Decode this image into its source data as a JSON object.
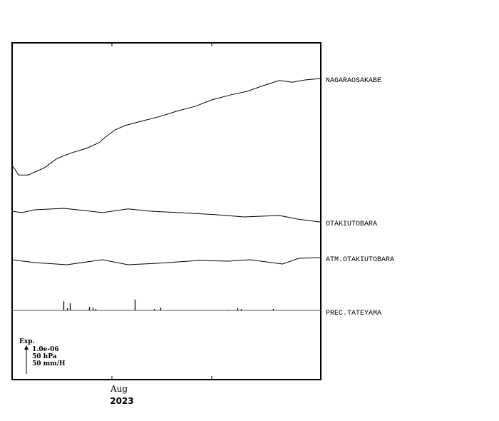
{
  "chart_data": {
    "type": "line",
    "xlim": [
      "2023-07-01",
      "2023-10-05"
    ],
    "x_ticks": [
      {
        "date": "2023-07-01",
        "label": ""
      },
      {
        "date": "2023-08-01",
        "label": "Aug"
      },
      {
        "date": "2023-09-01",
        "label": ""
      }
    ],
    "year_label": "2023",
    "grid": false,
    "scale_bar": {
      "title": "Exp.",
      "lines": [
        "1.0e-06",
        "50 hPa",
        "50 mm/H"
      ]
    },
    "series": [
      {
        "name": "NAGARAOSAKABE",
        "unit": "strain x 1.0e-06",
        "points": [
          [
            "2023-07-01",
            0
          ],
          [
            "2023-07-02",
            -0.15
          ],
          [
            "2023-07-03",
            -0.33
          ],
          [
            "2023-07-06",
            -0.33
          ],
          [
            "2023-07-11",
            -0.08
          ],
          [
            "2023-07-15",
            0.25
          ],
          [
            "2023-07-19",
            0.43
          ],
          [
            "2023-07-24",
            0.6
          ],
          [
            "2023-07-28",
            0.8
          ],
          [
            "2023-07-30",
            1.0
          ],
          [
            "2023-08-02",
            1.25
          ],
          [
            "2023-08-05",
            1.4
          ],
          [
            "2023-08-10",
            1.55
          ],
          [
            "2023-08-16",
            1.72
          ],
          [
            "2023-08-21",
            1.9
          ],
          [
            "2023-08-27",
            2.08
          ],
          [
            "2023-09-01",
            2.3
          ],
          [
            "2023-09-07",
            2.48
          ],
          [
            "2023-09-12",
            2.6
          ],
          [
            "2023-09-17",
            2.8
          ],
          [
            "2023-09-22",
            2.98
          ],
          [
            "2023-09-26",
            2.92
          ],
          [
            "2023-09-30",
            3.0
          ],
          [
            "2023-10-05",
            3.05
          ]
        ]
      },
      {
        "name": "OTAKIUTOBARA",
        "unit": "strain x 1.0e-06",
        "points": [
          [
            "2023-07-01",
            0
          ],
          [
            "2023-07-04",
            -0.05
          ],
          [
            "2023-07-08",
            0.05
          ],
          [
            "2023-07-17",
            0.1
          ],
          [
            "2023-07-24",
            0.02
          ],
          [
            "2023-07-29",
            -0.05
          ],
          [
            "2023-08-06",
            0.08
          ],
          [
            "2023-08-13",
            0
          ],
          [
            "2023-08-22",
            -0.05
          ],
          [
            "2023-09-02",
            -0.12
          ],
          [
            "2023-09-11",
            -0.2
          ],
          [
            "2023-09-22",
            -0.15
          ],
          [
            "2023-09-28",
            -0.28
          ],
          [
            "2023-10-05",
            -0.38
          ]
        ]
      },
      {
        "name": "ATM.OTAKIUTOBARA",
        "unit": "hPa",
        "points": [
          [
            "2023-07-01",
            0
          ],
          [
            "2023-07-08",
            -5
          ],
          [
            "2023-07-18",
            -8.75
          ],
          [
            "2023-07-29",
            0
          ],
          [
            "2023-08-06",
            -8.75
          ],
          [
            "2023-08-15",
            -6.25
          ],
          [
            "2023-08-28",
            -1.25
          ],
          [
            "2023-09-06",
            -2.5
          ],
          [
            "2023-09-13",
            0
          ],
          [
            "2023-09-23",
            -7.5
          ],
          [
            "2023-09-28",
            2.5
          ],
          [
            "2023-10-05",
            3.75
          ]
        ]
      }
    ],
    "precipitation": {
      "name": "PREC.TATEYAMA",
      "unit": "mm/H",
      "type": "bar",
      "points": [
        [
          "2023-07-17",
          16
        ],
        [
          "2023-07-18",
          4
        ],
        [
          "2023-07-19",
          12.5
        ],
        [
          "2023-07-25",
          6
        ],
        [
          "2023-07-26",
          5
        ],
        [
          "2023-07-27",
          2.5
        ],
        [
          "2023-08-08",
          19
        ],
        [
          "2023-08-14",
          2.5
        ],
        [
          "2023-08-16",
          5
        ],
        [
          "2023-09-06",
          1
        ],
        [
          "2023-09-09",
          4
        ],
        [
          "2023-09-10",
          2.5
        ],
        [
          "2023-09-20",
          2.5
        ]
      ]
    }
  }
}
